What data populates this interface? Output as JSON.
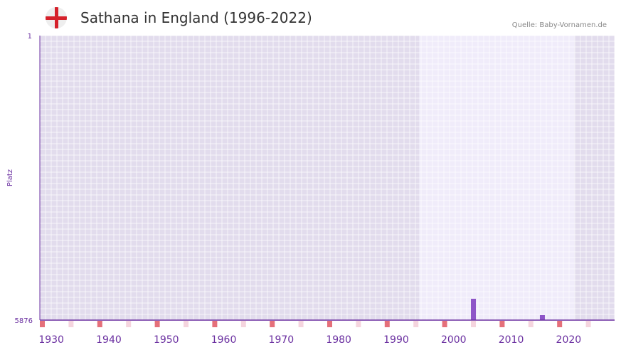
{
  "header": {
    "title": "Sathana in England (1996-2022)",
    "source": "Quelle: Baby-Vornamen.de"
  },
  "chart_data": {
    "type": "bar",
    "title": "Sathana in England (1996-2022)",
    "ylabel": "Platz",
    "xlabel": "",
    "ylim": [
      1,
      5876
    ],
    "y_inverted": true,
    "y_ticks": [
      "1",
      "5876"
    ],
    "xlim": [
      1928,
      2028
    ],
    "x_ticks": [
      1930,
      1940,
      1950,
      1960,
      1970,
      1980,
      1990,
      2000,
      2010,
      2020
    ],
    "highlight_range": [
      1994,
      2021
    ],
    "x": [
      2003,
      2015
    ],
    "values": [
      5435,
      5773
    ],
    "bar_color": "#8e55c8",
    "axis_color": "#6a2fa0"
  }
}
